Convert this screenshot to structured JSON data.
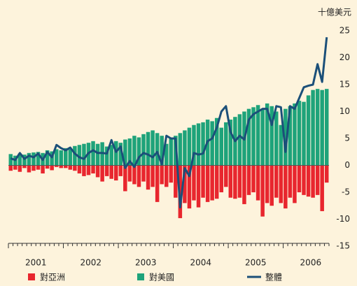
{
  "chart_data": {
    "type": "bar",
    "y_unit": "十億美元",
    "ylim": [
      -15,
      25
    ],
    "yticks": [
      25,
      20,
      15,
      10,
      5,
      0,
      -5,
      -10,
      -15
    ],
    "year_labels": [
      "2001",
      "2002",
      "2003",
      "2004",
      "2005",
      "2006"
    ],
    "categories": [
      null,
      null,
      null,
      null,
      null,
      null,
      null,
      null,
      null,
      null,
      null,
      null,
      null,
      null,
      null,
      null,
      null,
      null,
      null,
      null,
      null,
      null,
      null,
      null,
      null,
      null,
      null,
      null,
      null,
      null,
      null,
      null,
      null,
      null,
      null,
      null,
      null,
      null,
      null,
      null,
      null,
      null,
      null,
      null,
      null,
      null,
      null,
      null,
      null,
      null,
      null,
      null,
      null,
      null,
      null,
      null,
      null,
      null,
      null,
      null,
      null,
      null,
      null,
      null,
      null,
      null,
      null,
      null,
      null,
      null
    ],
    "series": [
      {
        "name": "對亞洲",
        "type": "bar",
        "color": "#e8262e",
        "values": [
          -1.0,
          -0.8,
          -1.2,
          -0.5,
          -1.3,
          -1.0,
          -0.8,
          -1.5,
          -0.6,
          -0.9,
          -0.3,
          -0.5,
          -0.5,
          -0.8,
          -1.0,
          -1.5,
          -2.0,
          -1.8,
          -1.5,
          -2.2,
          -3.0,
          -2.0,
          -2.5,
          -2.8,
          -2.0,
          -4.8,
          -3.0,
          -3.5,
          -4.0,
          -3.0,
          -4.5,
          -4.0,
          -6.8,
          -3.5,
          -4.0,
          -3.2,
          -6.0,
          -9.8,
          -7.0,
          -8.0,
          -6.5,
          -7.8,
          -6.0,
          -6.8,
          -6.5,
          -6.2,
          -5.0,
          -4.0,
          -6.0,
          -6.2,
          -6.0,
          -7.2,
          -5.5,
          -5.0,
          -6.5,
          -9.5,
          -7.0,
          -7.5,
          -6.0,
          -7.0,
          -8.0,
          -6.0,
          -7.0,
          -5.0,
          -5.5,
          -5.8,
          -6.0,
          -5.5,
          -8.5,
          -3.2
        ]
      },
      {
        "name": "對美國",
        "type": "bar",
        "color": "#1ea37a",
        "values": [
          2.1,
          1.8,
          2.2,
          2.0,
          2.3,
          2.4,
          2.5,
          2.3,
          2.8,
          2.6,
          3.0,
          2.8,
          3.2,
          3.0,
          3.6,
          3.8,
          4.0,
          4.2,
          4.5,
          4.0,
          4.3,
          3.5,
          3.8,
          4.5,
          4.2,
          4.8,
          5.0,
          5.5,
          5.2,
          5.8,
          6.2,
          6.5,
          6.0,
          5.5,
          4.0,
          5.0,
          5.5,
          6.0,
          6.5,
          7.0,
          7.5,
          7.8,
          8.0,
          8.5,
          8.2,
          8.8,
          7.0,
          8.0,
          8.5,
          9.0,
          9.5,
          10.0,
          10.5,
          10.8,
          11.2,
          10.5,
          11.5,
          11.0,
          10.0,
          7.5,
          10.5,
          11.0,
          11.5,
          12.0,
          11.8,
          13.0,
          14.0,
          14.2,
          14.0,
          14.2
        ]
      },
      {
        "name": "整體",
        "type": "line",
        "color": "#1b4f79",
        "values": [
          1.3,
          1.0,
          2.3,
          1.2,
          1.8,
          1.5,
          2.2,
          1.0,
          2.5,
          1.5,
          3.8,
          3.2,
          2.8,
          3.3,
          2.2,
          1.5,
          1.2,
          2.3,
          2.8,
          2.3,
          2.3,
          2.2,
          4.7,
          2.5,
          3.5,
          -0.5,
          0.8,
          -0.3,
          1.5,
          2.3,
          2.0,
          1.5,
          2.5,
          0.2,
          5.5,
          5.0,
          5.0,
          -7.8,
          -0.5,
          -2.0,
          2.3,
          2.0,
          2.2,
          4.5,
          5.0,
          7.0,
          10.0,
          11.0,
          6.2,
          4.5,
          5.5,
          4.8,
          8.5,
          9.5,
          10.0,
          10.5,
          10.5,
          7.5,
          11.0,
          10.8,
          2.5,
          11.0,
          10.5,
          12.5,
          14.5,
          14.8,
          15.0,
          18.8,
          15.5,
          23.8
        ]
      }
    ]
  }
}
